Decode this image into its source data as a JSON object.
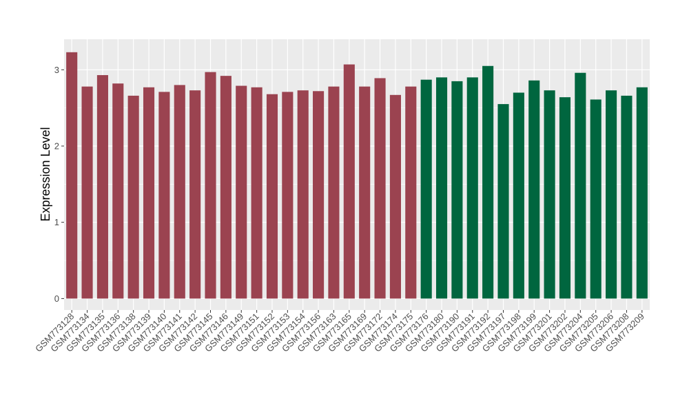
{
  "chart_data": {
    "type": "bar",
    "title": "",
    "xlabel": "",
    "ylabel": "Expression Level",
    "ylim": [
      -0.15,
      3.4
    ],
    "yticks": [
      0,
      1,
      2,
      3
    ],
    "grid": true,
    "legend": "none",
    "categories": [
      "GSM773128",
      "GSM773134",
      "GSM773135",
      "GSM773136",
      "GSM773138",
      "GSM773139",
      "GSM773140",
      "GSM773141",
      "GSM773142",
      "GSM773145",
      "GSM773146",
      "GSM773149",
      "GSM773151",
      "GSM773152",
      "GSM773153",
      "GSM773154",
      "GSM773156",
      "GSM773163",
      "GSM773165",
      "GSM773169",
      "GSM773172",
      "GSM773174",
      "GSM773175",
      "GSM773176",
      "GSM773180",
      "GSM773190",
      "GSM773191",
      "GSM773192",
      "GSM773197",
      "GSM773198",
      "GSM773199",
      "GSM773201",
      "GSM773202",
      "GSM773204",
      "GSM773205",
      "GSM773206",
      "GSM773208",
      "GSM773209"
    ],
    "values": [
      3.23,
      2.78,
      2.93,
      2.82,
      2.66,
      2.77,
      2.71,
      2.8,
      2.73,
      2.97,
      2.92,
      2.79,
      2.77,
      2.68,
      2.71,
      2.73,
      2.72,
      2.78,
      3.07,
      2.78,
      2.89,
      2.67,
      2.78,
      2.87,
      2.9,
      2.85,
      2.9,
      3.05,
      2.55,
      2.7,
      2.86,
      2.73,
      2.64,
      2.96,
      2.61,
      2.73,
      2.66,
      2.77
    ],
    "groups": [
      0,
      0,
      0,
      0,
      0,
      0,
      0,
      0,
      0,
      0,
      0,
      0,
      0,
      0,
      0,
      0,
      0,
      0,
      0,
      0,
      0,
      0,
      0,
      1,
      1,
      1,
      1,
      1,
      1,
      1,
      1,
      1,
      1,
      1,
      1,
      1,
      1,
      1
    ],
    "colors": [
      "#9b4350",
      "#00663f"
    ],
    "panel_color": "#ebebeb",
    "grid_color": "#ffffff"
  }
}
